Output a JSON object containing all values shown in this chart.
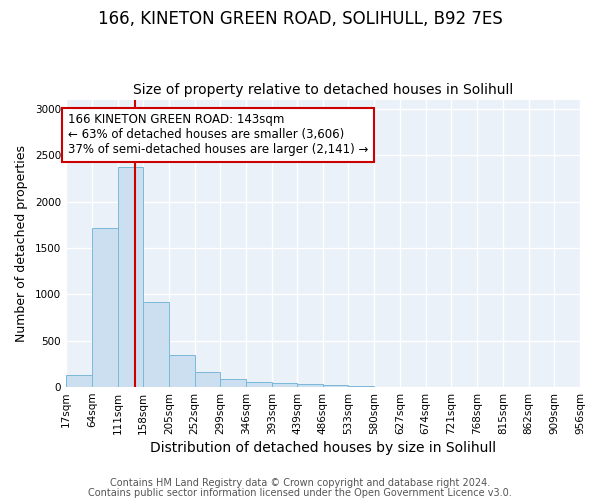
{
  "title1": "166, KINETON GREEN ROAD, SOLIHULL, B92 7ES",
  "title2": "Size of property relative to detached houses in Solihull",
  "xlabel": "Distribution of detached houses by size in Solihull",
  "ylabel": "Number of detached properties",
  "bin_edges": [
    17,
    64,
    111,
    158,
    205,
    252,
    299,
    346,
    393,
    439,
    486,
    533,
    580,
    627,
    674,
    721,
    768,
    815,
    862,
    909,
    956
  ],
  "bar_heights": [
    130,
    1720,
    2370,
    920,
    350,
    160,
    90,
    60,
    45,
    30,
    25,
    10,
    0,
    0,
    0,
    0,
    0,
    0,
    0,
    0
  ],
  "bar_color": "#ccdff0",
  "bar_edge_color": "#7ab8d9",
  "property_size": 143,
  "vline_color": "#cc0000",
  "annotation_line1": "166 KINETON GREEN ROAD: 143sqm",
  "annotation_line2": "← 63% of detached houses are smaller (3,606)",
  "annotation_line3": "37% of semi-detached houses are larger (2,141) →",
  "annotation_box_color": "#ffffff",
  "annotation_box_edge": "#cc0000",
  "ylim": [
    0,
    3100
  ],
  "yticks": [
    0,
    500,
    1000,
    1500,
    2000,
    2500,
    3000
  ],
  "footer1": "Contains HM Land Registry data © Crown copyright and database right 2024.",
  "footer2": "Contains public sector information licensed under the Open Government Licence v3.0.",
  "background_color": "#eaf1f8",
  "grid_color": "#ffffff",
  "title1_fontsize": 12,
  "title2_fontsize": 10,
  "xlabel_fontsize": 10,
  "ylabel_fontsize": 9,
  "tick_fontsize": 7.5,
  "annotation_fontsize": 8.5,
  "footer_fontsize": 7
}
